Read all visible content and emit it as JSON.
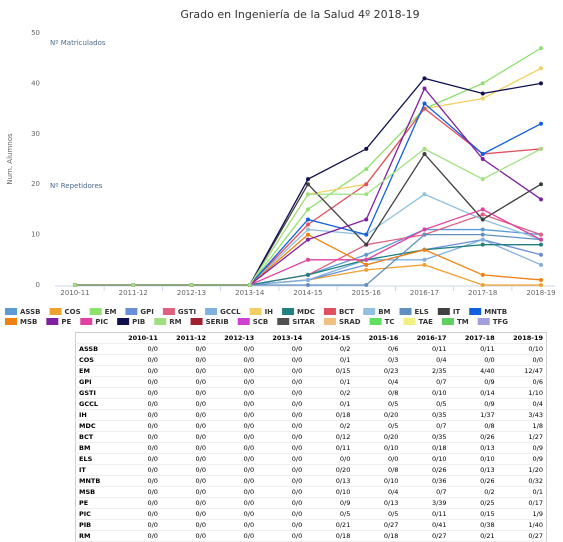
{
  "chart_data": {
    "type": "line",
    "title": "Grado en Ingeniería de la Salud 4º 2018-19",
    "y_label": "Num. Alumnos",
    "annotations": [
      "Nº Matriculados",
      "Nº Repetidores"
    ],
    "categories": [
      "2010-11",
      "2011-12",
      "2012-13",
      "2013-14",
      "2014-15",
      "2015-16",
      "2016-17",
      "2017-18",
      "2018-19"
    ],
    "ylim": [
      0,
      50
    ],
    "yticks": [
      0,
      10,
      20,
      30,
      40,
      50
    ],
    "grid": false,
    "series": [
      {
        "name": "ASSB",
        "color": "#5b9bd5",
        "values": [
          0,
          0,
          0,
          0,
          2,
          6,
          11,
          11,
          10
        ]
      },
      {
        "name": "COS",
        "color": "#f0a030",
        "values": [
          0,
          0,
          0,
          0,
          1,
          3,
          4,
          0,
          0
        ]
      },
      {
        "name": "EM",
        "color": "#90e070",
        "values": [
          0,
          0,
          0,
          0,
          15,
          23,
          35,
          40,
          47
        ]
      },
      {
        "name": "GPI",
        "color": "#6a8fd8",
        "values": [
          0,
          0,
          0,
          0,
          1,
          4,
          7,
          9,
          6
        ]
      },
      {
        "name": "GSTI",
        "color": "#e06080",
        "values": [
          0,
          0,
          0,
          0,
          2,
          8,
          10,
          14,
          10
        ]
      },
      {
        "name": "GCCL",
        "color": "#80b0e0",
        "values": [
          0,
          0,
          0,
          0,
          1,
          5,
          5,
          9,
          4
        ]
      },
      {
        "name": "IH",
        "color": "#f0d060",
        "values": [
          0,
          0,
          0,
          0,
          18,
          20,
          35,
          37,
          43
        ]
      },
      {
        "name": "MDC",
        "color": "#208080",
        "values": [
          0,
          0,
          0,
          0,
          2,
          5,
          7,
          8,
          8
        ]
      },
      {
        "name": "BCT",
        "color": "#e05060",
        "values": [
          0,
          0,
          0,
          0,
          12,
          20,
          35,
          26,
          27
        ]
      },
      {
        "name": "BM",
        "color": "#90c0e0",
        "values": [
          0,
          0,
          0,
          0,
          11,
          10,
          18,
          13,
          9
        ]
      },
      {
        "name": "ELS",
        "color": "#6090c0",
        "values": [
          0,
          0,
          0,
          0,
          0,
          0,
          10,
          10,
          9
        ]
      },
      {
        "name": "IT",
        "color": "#404040",
        "values": [
          0,
          0,
          0,
          0,
          20,
          8,
          26,
          13,
          20
        ]
      },
      {
        "name": "MNTB",
        "color": "#1060e0",
        "values": [
          0,
          0,
          0,
          0,
          13,
          10,
          36,
          26,
          32
        ]
      },
      {
        "name": "MSB",
        "color": "#f08010",
        "values": [
          0,
          0,
          0,
          0,
          10,
          4,
          7,
          2,
          1
        ]
      },
      {
        "name": "PE",
        "color": "#8020a0",
        "values": [
          0,
          0,
          0,
          0,
          9,
          13,
          39,
          25,
          17
        ]
      },
      {
        "name": "PIC",
        "color": "#e040a0",
        "values": [
          0,
          0,
          0,
          0,
          5,
          5,
          11,
          15,
          9
        ]
      },
      {
        "name": "PIB",
        "color": "#101050",
        "values": [
          0,
          0,
          0,
          0,
          21,
          27,
          41,
          38,
          40
        ]
      },
      {
        "name": "RM",
        "color": "#a0e080",
        "values": [
          0,
          0,
          0,
          0,
          18,
          18,
          27,
          21,
          27
        ]
      }
    ],
    "other_legend_entries": [
      {
        "name": "SERIB",
        "color": "#a02030"
      },
      {
        "name": "SCB",
        "color": "#d040d0"
      },
      {
        "name": "SITAR",
        "color": "#505050"
      },
      {
        "name": "SRAD",
        "color": "#f0c080"
      },
      {
        "name": "TC",
        "color": "#60e060"
      },
      {
        "name": "TAE",
        "color": "#f0f080"
      },
      {
        "name": "TM",
        "color": "#60d060"
      },
      {
        "name": "TFG",
        "color": "#a0a0e0"
      }
    ]
  },
  "table": {
    "header": [
      "",
      "2010-11",
      "2011-12",
      "2012-13",
      "2013-14",
      "2014-15",
      "2015-16",
      "2016-17",
      "2017-18",
      "2018-19"
    ],
    "rows": [
      [
        "ASSB",
        "0/0",
        "0/0",
        "0/0",
        "0/0",
        "0/2",
        "0/6",
        "0/11",
        "0/11",
        "0/10"
      ],
      [
        "COS",
        "0/0",
        "0/0",
        "0/0",
        "0/0",
        "0/1",
        "0/3",
        "0/4",
        "0/0",
        "0/0"
      ],
      [
        "EM",
        "0/0",
        "0/0",
        "0/0",
        "0/0",
        "0/15",
        "0/23",
        "2/35",
        "4/40",
        "12/47"
      ],
      [
        "GPI",
        "0/0",
        "0/0",
        "0/0",
        "0/0",
        "0/1",
        "0/4",
        "0/7",
        "0/9",
        "0/6"
      ],
      [
        "GSTI",
        "0/0",
        "0/0",
        "0/0",
        "0/0",
        "0/2",
        "0/8",
        "0/10",
        "0/14",
        "1/10"
      ],
      [
        "GCCL",
        "0/0",
        "0/0",
        "0/0",
        "0/0",
        "0/1",
        "0/5",
        "0/5",
        "0/9",
        "0/4"
      ],
      [
        "IH",
        "0/0",
        "0/0",
        "0/0",
        "0/0",
        "0/18",
        "0/20",
        "0/35",
        "1/37",
        "3/43"
      ],
      [
        "MDC",
        "0/0",
        "0/0",
        "0/0",
        "0/0",
        "0/2",
        "0/5",
        "0/7",
        "0/8",
        "1/8"
      ],
      [
        "BCT",
        "0/0",
        "0/0",
        "0/0",
        "0/0",
        "0/12",
        "0/20",
        "0/35",
        "0/26",
        "1/27"
      ],
      [
        "BM",
        "0/0",
        "0/0",
        "0/0",
        "0/0",
        "0/11",
        "0/10",
        "0/18",
        "0/13",
        "0/9"
      ],
      [
        "ELS",
        "0/0",
        "0/0",
        "0/0",
        "0/0",
        "0/0",
        "0/0",
        "0/10",
        "0/10",
        "0/9"
      ],
      [
        "IT",
        "0/0",
        "0/0",
        "0/0",
        "0/0",
        "0/20",
        "0/8",
        "0/26",
        "0/13",
        "1/20"
      ],
      [
        "MNTB",
        "0/0",
        "0/0",
        "0/0",
        "0/0",
        "0/13",
        "0/10",
        "0/36",
        "0/26",
        "0/32"
      ],
      [
        "MSB",
        "0/0",
        "0/0",
        "0/0",
        "0/0",
        "0/10",
        "0/4",
        "0/7",
        "0/2",
        "0/1"
      ],
      [
        "PE",
        "0/0",
        "0/0",
        "0/0",
        "0/0",
        "0/9",
        "0/13",
        "3/39",
        "0/25",
        "0/17"
      ],
      [
        "PIC",
        "0/0",
        "0/0",
        "0/0",
        "0/0",
        "0/5",
        "0/5",
        "0/11",
        "0/15",
        "1/9"
      ],
      [
        "PIB",
        "0/0",
        "0/0",
        "0/0",
        "0/0",
        "0/21",
        "0/27",
        "0/41",
        "0/38",
        "1/40"
      ],
      [
        "RM",
        "0/0",
        "0/0",
        "0/0",
        "0/0",
        "0/18",
        "0/18",
        "0/27",
        "0/21",
        "0/27"
      ]
    ]
  }
}
